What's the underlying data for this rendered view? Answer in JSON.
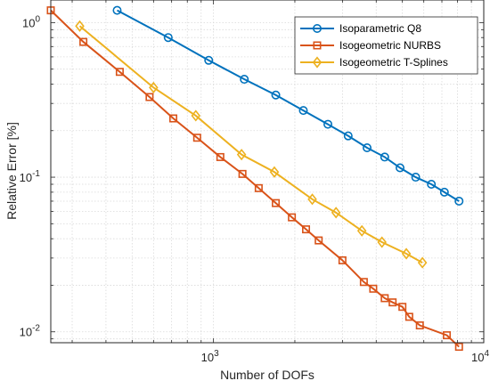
{
  "chart_data": {
    "type": "line",
    "title": "",
    "xlabel": "Number of DOFs",
    "ylabel": "Relative Error [%]",
    "xscale": "log",
    "yscale": "log",
    "xlim": [
      250,
      10000
    ],
    "ylim": [
      0.0085,
      1.4
    ],
    "grid": true,
    "legend_position": "top-right",
    "x_ticks": [
      {
        "value": 1000,
        "base": "10",
        "exp": "3"
      },
      {
        "value": 10000,
        "base": "10",
        "exp": "4"
      }
    ],
    "y_ticks": [
      {
        "value": 1,
        "label": "10",
        "exp": "0"
      },
      {
        "value": 0.1,
        "label": "10",
        "exp": "-1"
      },
      {
        "value": 0.01,
        "label": "10",
        "exp": "-2"
      }
    ],
    "series": [
      {
        "name": "Isoparametric Q8",
        "color": "#0072BD",
        "marker": "circle",
        "x": [
          440,
          680,
          960,
          1300,
          1700,
          2150,
          2650,
          3150,
          3700,
          4300,
          4900,
          5600,
          6400,
          7150,
          8100
        ],
        "y": [
          1.2,
          0.8,
          0.57,
          0.43,
          0.34,
          0.27,
          0.22,
          0.185,
          0.155,
          0.135,
          0.115,
          0.1,
          0.09,
          0.08,
          0.07
        ]
      },
      {
        "name": "Isogeometric NURBS",
        "color": "#D95319",
        "marker": "square",
        "x": [
          250,
          330,
          450,
          580,
          710,
          870,
          1060,
          1280,
          1470,
          1700,
          1950,
          2200,
          2450,
          3000,
          3600,
          3900,
          4300,
          4600,
          5000,
          5300,
          5800,
          7300,
          8100
        ],
        "y": [
          1.2,
          0.75,
          0.48,
          0.33,
          0.24,
          0.18,
          0.135,
          0.105,
          0.085,
          0.068,
          0.055,
          0.046,
          0.039,
          0.029,
          0.021,
          0.019,
          0.0165,
          0.0155,
          0.0145,
          0.0125,
          0.011,
          0.0095,
          0.008
        ]
      },
      {
        "name": "Isogeometric T-Splines",
        "color": "#EDB120",
        "marker": "diamond",
        "x": [
          320,
          600,
          860,
          1270,
          1680,
          2320,
          2840,
          3540,
          4200,
          5170,
          5930
        ],
        "y": [
          0.95,
          0.38,
          0.25,
          0.14,
          0.108,
          0.072,
          0.059,
          0.045,
          0.038,
          0.032,
          0.028
        ]
      }
    ]
  }
}
